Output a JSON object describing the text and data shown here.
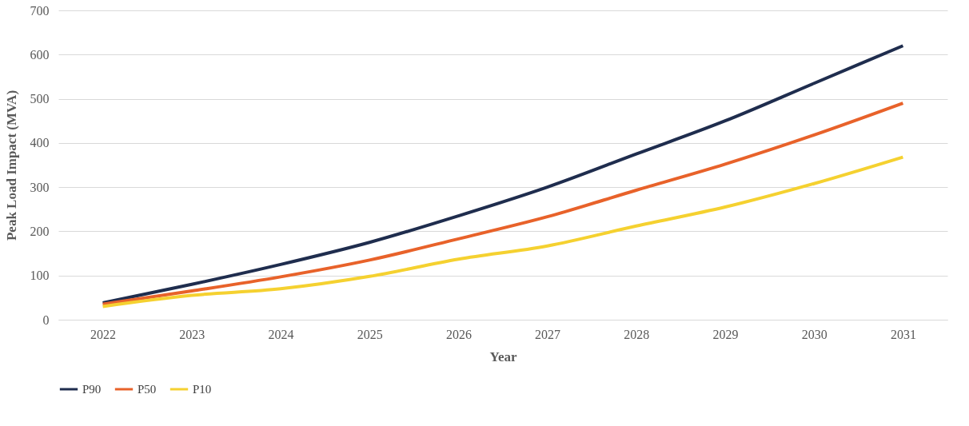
{
  "chart_data": {
    "type": "line",
    "xlabel": "Year",
    "ylabel": "Peak Load Impact  (MVA)",
    "categories": [
      "2022",
      "2023",
      "2024",
      "2025",
      "2026",
      "2027",
      "2028",
      "2029",
      "2030",
      "2031"
    ],
    "series": [
      {
        "name": "P90",
        "color": "#1f2d4e",
        "values": [
          38,
          80,
          125,
          175,
          235,
          300,
          375,
          450,
          535,
          620
        ]
      },
      {
        "name": "P50",
        "color": "#e8622a",
        "values": [
          35,
          65,
          97,
          135,
          183,
          233,
          293,
          352,
          418,
          490
        ]
      },
      {
        "name": "P10",
        "color": "#f5d130",
        "values": [
          30,
          55,
          70,
          98,
          137,
          167,
          212,
          255,
          308,
          368
        ]
      }
    ],
    "ylim": [
      0,
      700
    ],
    "yticks": [
      0,
      100,
      200,
      300,
      400,
      500,
      600,
      700
    ],
    "grid": "y",
    "legend": "bottom",
    "marker": "none",
    "line_style": "solid"
  }
}
